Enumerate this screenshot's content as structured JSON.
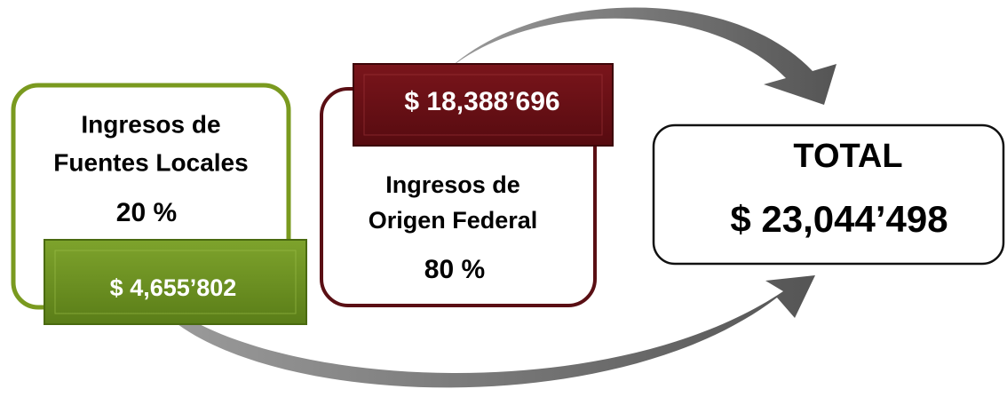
{
  "local": {
    "title_lines": [
      "Ingresos de",
      "Fuentes Locales"
    ],
    "percent": "20 %",
    "amount": "$ 4,655’802"
  },
  "federal": {
    "title_lines": [
      "Ingresos de",
      "Origen Federal"
    ],
    "percent": "80 %",
    "amount": "$ 18,388’696"
  },
  "total": {
    "label": "TOTAL",
    "amount": "$ 23,044’498"
  }
}
